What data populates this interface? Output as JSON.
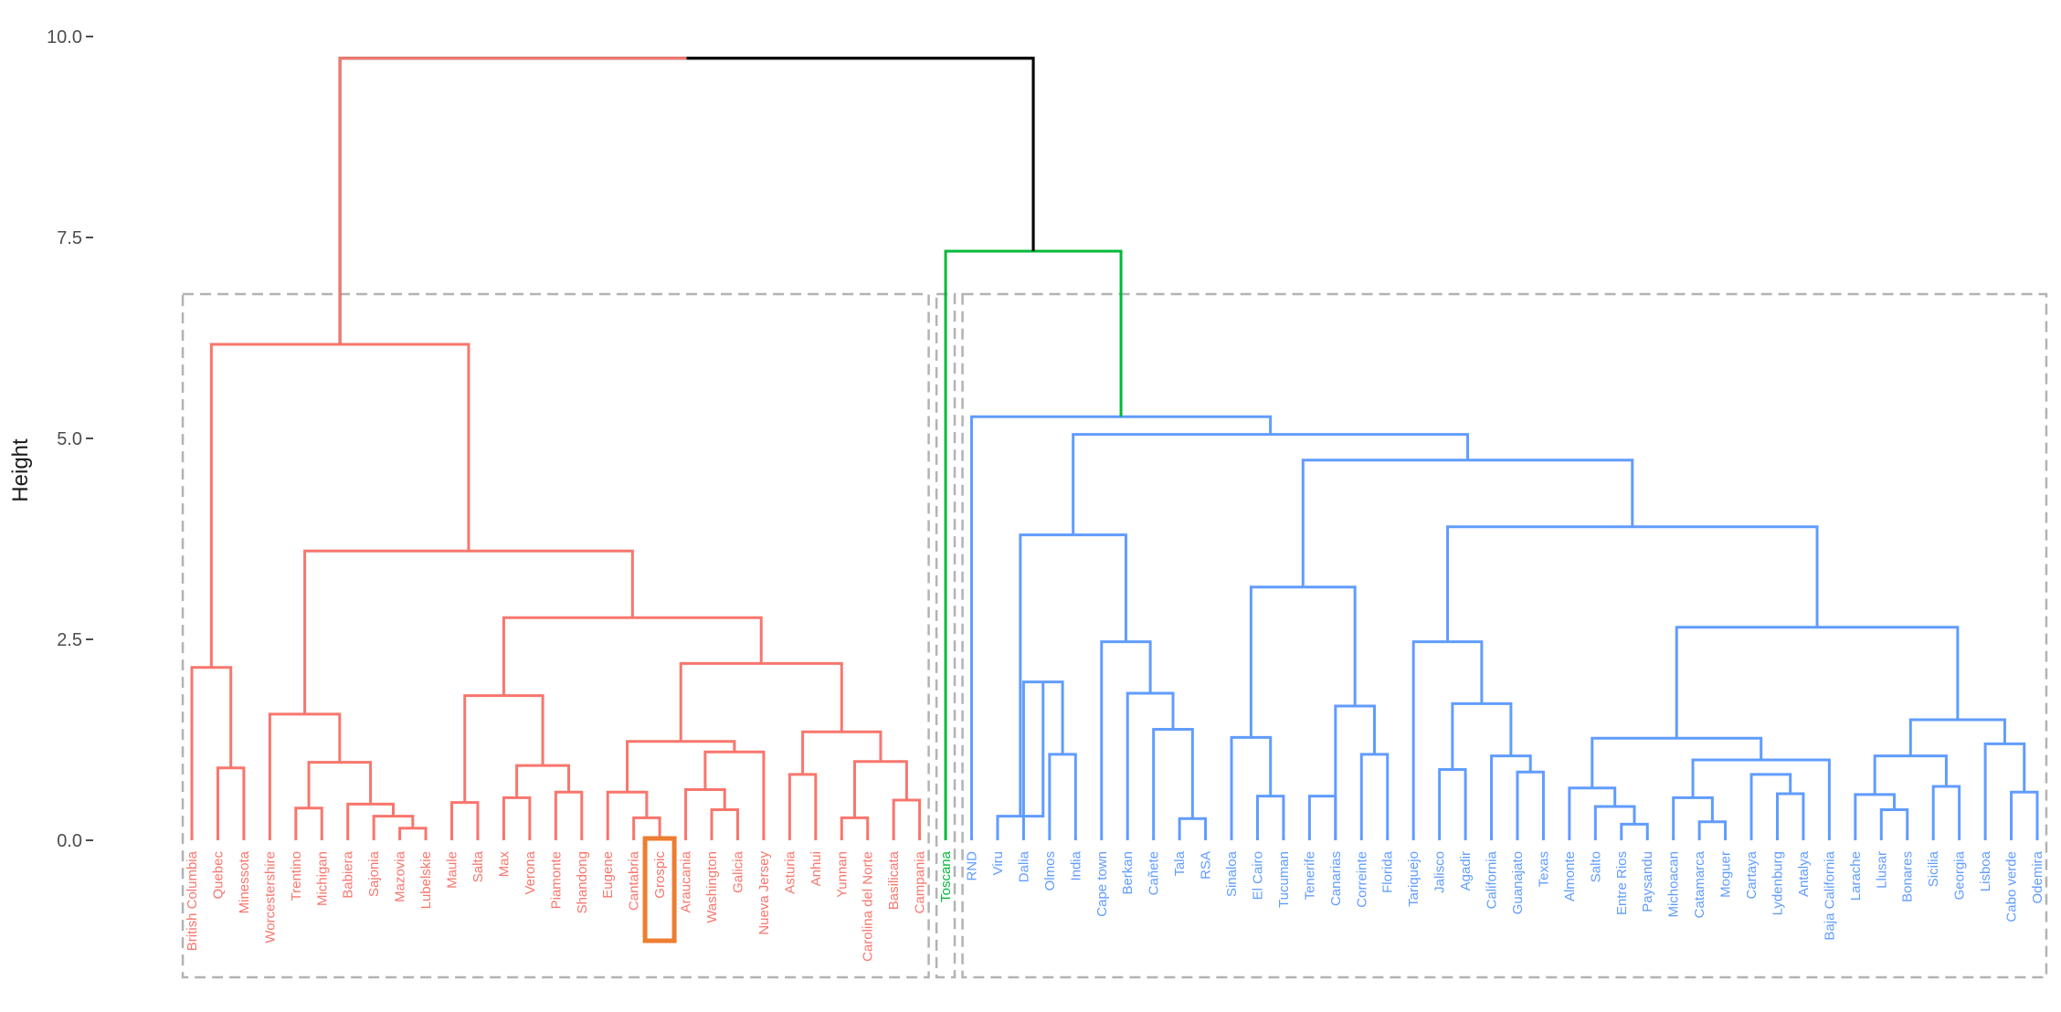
{
  "chart_data": {
    "type": "dendrogram",
    "title": "",
    "xlabel": "",
    "ylabel": "Height",
    "ylim": [
      0,
      10
    ],
    "yticks": [
      0,
      2.5,
      5,
      7.5,
      10
    ],
    "ytick_labels": [
      "0.0",
      "2.5",
      "5.0",
      "7.5",
      "10.0"
    ],
    "grid": false,
    "cluster_colors": {
      "1": "#f8766d",
      "2": "#00ba38",
      "3": "#619cff",
      "root": "#000000",
      "highlight": "#ed7d31",
      "box": "#b3b3b3"
    },
    "leaves": [
      {
        "label": "British Columbia",
        "cluster": 1
      },
      {
        "label": "Quebec",
        "cluster": 1
      },
      {
        "label": "Minessota",
        "cluster": 1
      },
      {
        "label": "Worcestershire",
        "cluster": 1
      },
      {
        "label": "Trentino",
        "cluster": 1
      },
      {
        "label": "Michigan",
        "cluster": 1
      },
      {
        "label": "Babiera",
        "cluster": 1
      },
      {
        "label": "Sajonia",
        "cluster": 1
      },
      {
        "label": "Mazovia",
        "cluster": 1
      },
      {
        "label": "Lubelskie",
        "cluster": 1
      },
      {
        "label": "Maule",
        "cluster": 1
      },
      {
        "label": "Salta",
        "cluster": 1
      },
      {
        "label": "Max",
        "cluster": 1
      },
      {
        "label": "Verona",
        "cluster": 1
      },
      {
        "label": "Piamonte",
        "cluster": 1
      },
      {
        "label": "Shandong",
        "cluster": 1
      },
      {
        "label": "Eugene",
        "cluster": 1
      },
      {
        "label": "Cantabria",
        "cluster": 1
      },
      {
        "label": "Grospic",
        "cluster": 1,
        "highlighted": true
      },
      {
        "label": "Araucania",
        "cluster": 1
      },
      {
        "label": "Washington",
        "cluster": 1
      },
      {
        "label": "Galicia",
        "cluster": 1
      },
      {
        "label": "Nueva Jersey",
        "cluster": 1
      },
      {
        "label": "Asturia",
        "cluster": 1
      },
      {
        "label": "Anhui",
        "cluster": 1
      },
      {
        "label": "Yunnan",
        "cluster": 1
      },
      {
        "label": "Carolina del Norte",
        "cluster": 1
      },
      {
        "label": "Basilicata",
        "cluster": 1
      },
      {
        "label": "Campania",
        "cluster": 1
      },
      {
        "label": "Toscana",
        "cluster": 2
      },
      {
        "label": "RND",
        "cluster": 3
      },
      {
        "label": "Viru",
        "cluster": 3
      },
      {
        "label": "Dalia",
        "cluster": 3
      },
      {
        "label": "Olmos",
        "cluster": 3
      },
      {
        "label": "India",
        "cluster": 3
      },
      {
        "label": "Cape town",
        "cluster": 3
      },
      {
        "label": "Berkan",
        "cluster": 3
      },
      {
        "label": "Cañete",
        "cluster": 3
      },
      {
        "label": "Tala",
        "cluster": 3
      },
      {
        "label": "RSA",
        "cluster": 3
      },
      {
        "label": "Sinaloa",
        "cluster": 3
      },
      {
        "label": "El Cairo",
        "cluster": 3
      },
      {
        "label": "Tucuman",
        "cluster": 3
      },
      {
        "label": "Tenerife",
        "cluster": 3
      },
      {
        "label": "Canarias",
        "cluster": 3
      },
      {
        "label": "Correinte",
        "cluster": 3
      },
      {
        "label": "Florida",
        "cluster": 3
      },
      {
        "label": "Tariquejo",
        "cluster": 3
      },
      {
        "label": "Jalisco",
        "cluster": 3
      },
      {
        "label": "Agadir",
        "cluster": 3
      },
      {
        "label": "California",
        "cluster": 3
      },
      {
        "label": "Guanajato",
        "cluster": 3
      },
      {
        "label": "Texas",
        "cluster": 3
      },
      {
        "label": "Almonte",
        "cluster": 3
      },
      {
        "label": "Salto",
        "cluster": 3
      },
      {
        "label": "Entre Rios",
        "cluster": 3
      },
      {
        "label": "Paysandu",
        "cluster": 3
      },
      {
        "label": "Michoacan",
        "cluster": 3
      },
      {
        "label": "Catamarca",
        "cluster": 3
      },
      {
        "label": "Moguer",
        "cluster": 3
      },
      {
        "label": "Cartaya",
        "cluster": 3
      },
      {
        "label": "Lydenburg",
        "cluster": 3
      },
      {
        "label": "Antalya",
        "cluster": 3
      },
      {
        "label": "Baja California",
        "cluster": 3
      },
      {
        "label": "Larache",
        "cluster": 3
      },
      {
        "label": "Llusar",
        "cluster": 3
      },
      {
        "label": "Bonares",
        "cluster": 3
      },
      {
        "label": "Sicilia",
        "cluster": 3
      },
      {
        "label": "Georgia",
        "cluster": 3
      },
      {
        "label": "Lisboa",
        "cluster": 3
      },
      {
        "label": "Cabo verde",
        "cluster": 3
      },
      {
        "label": "Odemira",
        "cluster": 3
      }
    ],
    "merges": [
      {
        "id": "n1",
        "left": 1,
        "right": 2,
        "height": 0.9,
        "cluster": 1
      },
      {
        "id": "n2",
        "left": 0,
        "right": "n1",
        "height": 2.15,
        "cluster": 1
      },
      {
        "id": "n3",
        "left": 8,
        "right": 9,
        "height": 0.15,
        "cluster": 1
      },
      {
        "id": "n4",
        "left": 7,
        "right": "n3",
        "height": 0.3,
        "cluster": 1
      },
      {
        "id": "n5",
        "left": 6,
        "right": "n4",
        "height": 0.45,
        "cluster": 1
      },
      {
        "id": "n6",
        "left": 4,
        "right": 5,
        "height": 0.4,
        "cluster": 1
      },
      {
        "id": "n7",
        "left": "n6",
        "right": "n5",
        "height": 0.97,
        "cluster": 1
      },
      {
        "id": "n8",
        "left": 3,
        "right": "n7",
        "height": 1.57,
        "cluster": 1
      },
      {
        "id": "n9",
        "left": 10,
        "right": 11,
        "height": 0.47,
        "cluster": 1
      },
      {
        "id": "n10",
        "left": 12,
        "right": 13,
        "height": 0.53,
        "cluster": 1
      },
      {
        "id": "n11",
        "left": 14,
        "right": 15,
        "height": 0.6,
        "cluster": 1
      },
      {
        "id": "n12",
        "left": "n10",
        "right": "n11",
        "height": 0.93,
        "cluster": 1
      },
      {
        "id": "n13",
        "left": "n9",
        "right": "n12",
        "height": 1.8,
        "cluster": 1
      },
      {
        "id": "n14",
        "left": 17,
        "right": 18,
        "height": 0.28,
        "cluster": 1
      },
      {
        "id": "n15",
        "left": 16,
        "right": "n14",
        "height": 0.6,
        "cluster": 1
      },
      {
        "id": "n16",
        "left": 20,
        "right": 21,
        "height": 0.38,
        "cluster": 1
      },
      {
        "id": "n17",
        "left": 19,
        "right": "n16",
        "height": 0.63,
        "cluster": 1
      },
      {
        "id": "n18",
        "left": 22,
        "right": "n17",
        "height": 1.1,
        "cluster": 1
      },
      {
        "id": "n19",
        "left": "n15",
        "right": "n18",
        "height": 1.23,
        "cluster": 1
      },
      {
        "id": "n20",
        "left": 23,
        "right": 24,
        "height": 0.82,
        "cluster": 1
      },
      {
        "id": "n21",
        "left": 25,
        "right": 26,
        "height": 0.28,
        "cluster": 1
      },
      {
        "id": "n22",
        "left": 27,
        "right": 28,
        "height": 0.5,
        "cluster": 1
      },
      {
        "id": "n23",
        "left": "n21",
        "right": "n22",
        "height": 0.98,
        "cluster": 1
      },
      {
        "id": "n24",
        "left": "n20",
        "right": "n23",
        "height": 1.35,
        "cluster": 1
      },
      {
        "id": "n25",
        "left": "n19",
        "right": "n24",
        "height": 2.2,
        "cluster": 1
      },
      {
        "id": "n26",
        "left": "n13",
        "right": "n25",
        "height": 2.77,
        "cluster": 1
      },
      {
        "id": "n27",
        "left": "n8",
        "right": "n26",
        "height": 3.6,
        "cluster": 1
      },
      {
        "id": "n28",
        "left": "n2",
        "right": "n27",
        "height": 6.17,
        "cluster": 1
      },
      {
        "id": "n29",
        "left": 33,
        "right": 34,
        "height": 1.07,
        "cluster": 3
      },
      {
        "id": "n30",
        "left": 32,
        "right": "n29",
        "height": 1.97,
        "cluster": 3
      },
      {
        "id": "n31",
        "left": 31,
        "right": "n30",
        "height": 0.3,
        "cluster": 3
      },
      {
        "id": "n32",
        "left": 38,
        "right": 39,
        "height": 0.27,
        "cluster": 3
      },
      {
        "id": "n33",
        "left": 37,
        "right": "n32",
        "height": 1.38,
        "cluster": 3
      },
      {
        "id": "n34",
        "left": 36,
        "right": "n33",
        "height": 1.83,
        "cluster": 3
      },
      {
        "id": "n35",
        "left": 35,
        "right": "n34",
        "height": 2.47,
        "cluster": 3
      },
      {
        "id": "n36",
        "left": "n31",
        "right": "n35",
        "height": 3.8,
        "cluster": 3
      },
      {
        "id": "n37",
        "left": 41,
        "right": 42,
        "height": 0.55,
        "cluster": 3
      },
      {
        "id": "n38",
        "left": 40,
        "right": "n37",
        "height": 1.28,
        "cluster": 3
      },
      {
        "id": "n39",
        "left": 45,
        "right": 46,
        "height": 1.07,
        "cluster": 3
      },
      {
        "id": "n40",
        "left": 44,
        "right": "n39",
        "height": 1.67,
        "cluster": 3
      },
      {
        "id": "n41",
        "left": 43,
        "right": 44,
        "height": 0.55,
        "cluster": 3
      },
      {
        "id": "n42",
        "left": "n38",
        "right": "n40",
        "height": 3.15,
        "cluster": 3
      },
      {
        "id": "n43",
        "left": 48,
        "right": 49,
        "height": 0.88,
        "cluster": 3
      },
      {
        "id": "n44",
        "left": 51,
        "right": 52,
        "height": 0.85,
        "cluster": 3
      },
      {
        "id": "n45",
        "left": 50,
        "right": "n44",
        "height": 1.05,
        "cluster": 3
      },
      {
        "id": "n46",
        "left": "n43",
        "right": "n45",
        "height": 1.7,
        "cluster": 3
      },
      {
        "id": "n47",
        "left": 47,
        "right": "n46",
        "height": 2.47,
        "cluster": 3
      },
      {
        "id": "n48",
        "left": 55,
        "right": 56,
        "height": 0.2,
        "cluster": 3
      },
      {
        "id": "n49",
        "left": 54,
        "right": "n48",
        "height": 0.42,
        "cluster": 3
      },
      {
        "id": "n50",
        "left": 53,
        "right": "n49",
        "height": 0.65,
        "cluster": 3
      },
      {
        "id": "n51",
        "left": 58,
        "right": 59,
        "height": 0.23,
        "cluster": 3
      },
      {
        "id": "n52",
        "left": 57,
        "right": "n51",
        "height": 0.53,
        "cluster": 3
      },
      {
        "id": "n53",
        "left": 61,
        "right": 62,
        "height": 0.58,
        "cluster": 3
      },
      {
        "id": "n54",
        "left": 60,
        "right": "n53",
        "height": 0.82,
        "cluster": 3
      },
      {
        "id": "n55",
        "left": "n52",
        "right": 63,
        "height": 1.0,
        "cluster": 3
      },
      {
        "id": "n56",
        "left": "n50",
        "right": "n55",
        "height": 1.27,
        "cluster": 3
      },
      {
        "id": "n57",
        "left": 65,
        "right": 66,
        "height": 0.38,
        "cluster": 3
      },
      {
        "id": "n58",
        "left": 64,
        "right": "n57",
        "height": 0.57,
        "cluster": 3
      },
      {
        "id": "n59",
        "left": 67,
        "right": 68,
        "height": 0.67,
        "cluster": 3
      },
      {
        "id": "n60",
        "left": "n58",
        "right": "n59",
        "height": 1.05,
        "cluster": 3
      },
      {
        "id": "n61",
        "left": 70,
        "right": 71,
        "height": 0.6,
        "cluster": 3
      },
      {
        "id": "n62",
        "left": 69,
        "right": "n61",
        "height": 1.2,
        "cluster": 3
      },
      {
        "id": "n63",
        "left": "n60",
        "right": "n62",
        "height": 1.5,
        "cluster": 3
      },
      {
        "id": "n64",
        "left": "n56",
        "right": "n63",
        "height": 2.65,
        "cluster": 3
      },
      {
        "id": "n65",
        "left": "n47",
        "right": "n64",
        "height": 3.9,
        "cluster": 3
      },
      {
        "id": "n66",
        "left": "n42",
        "right": "n65",
        "height": 4.73,
        "cluster": 3
      },
      {
        "id": "n67",
        "left": "n36",
        "right": "n66",
        "height": 5.05,
        "cluster": 3
      },
      {
        "id": "n68",
        "left": 30,
        "right": "n67",
        "height": 5.27,
        "cluster": 3
      },
      {
        "id": "n69",
        "left": 29,
        "right": "n68",
        "height": 7.33,
        "cluster": 2
      },
      {
        "id": "n70",
        "left": "n28",
        "right": "n69",
        "height": 9.73,
        "cluster": "root"
      }
    ]
  }
}
